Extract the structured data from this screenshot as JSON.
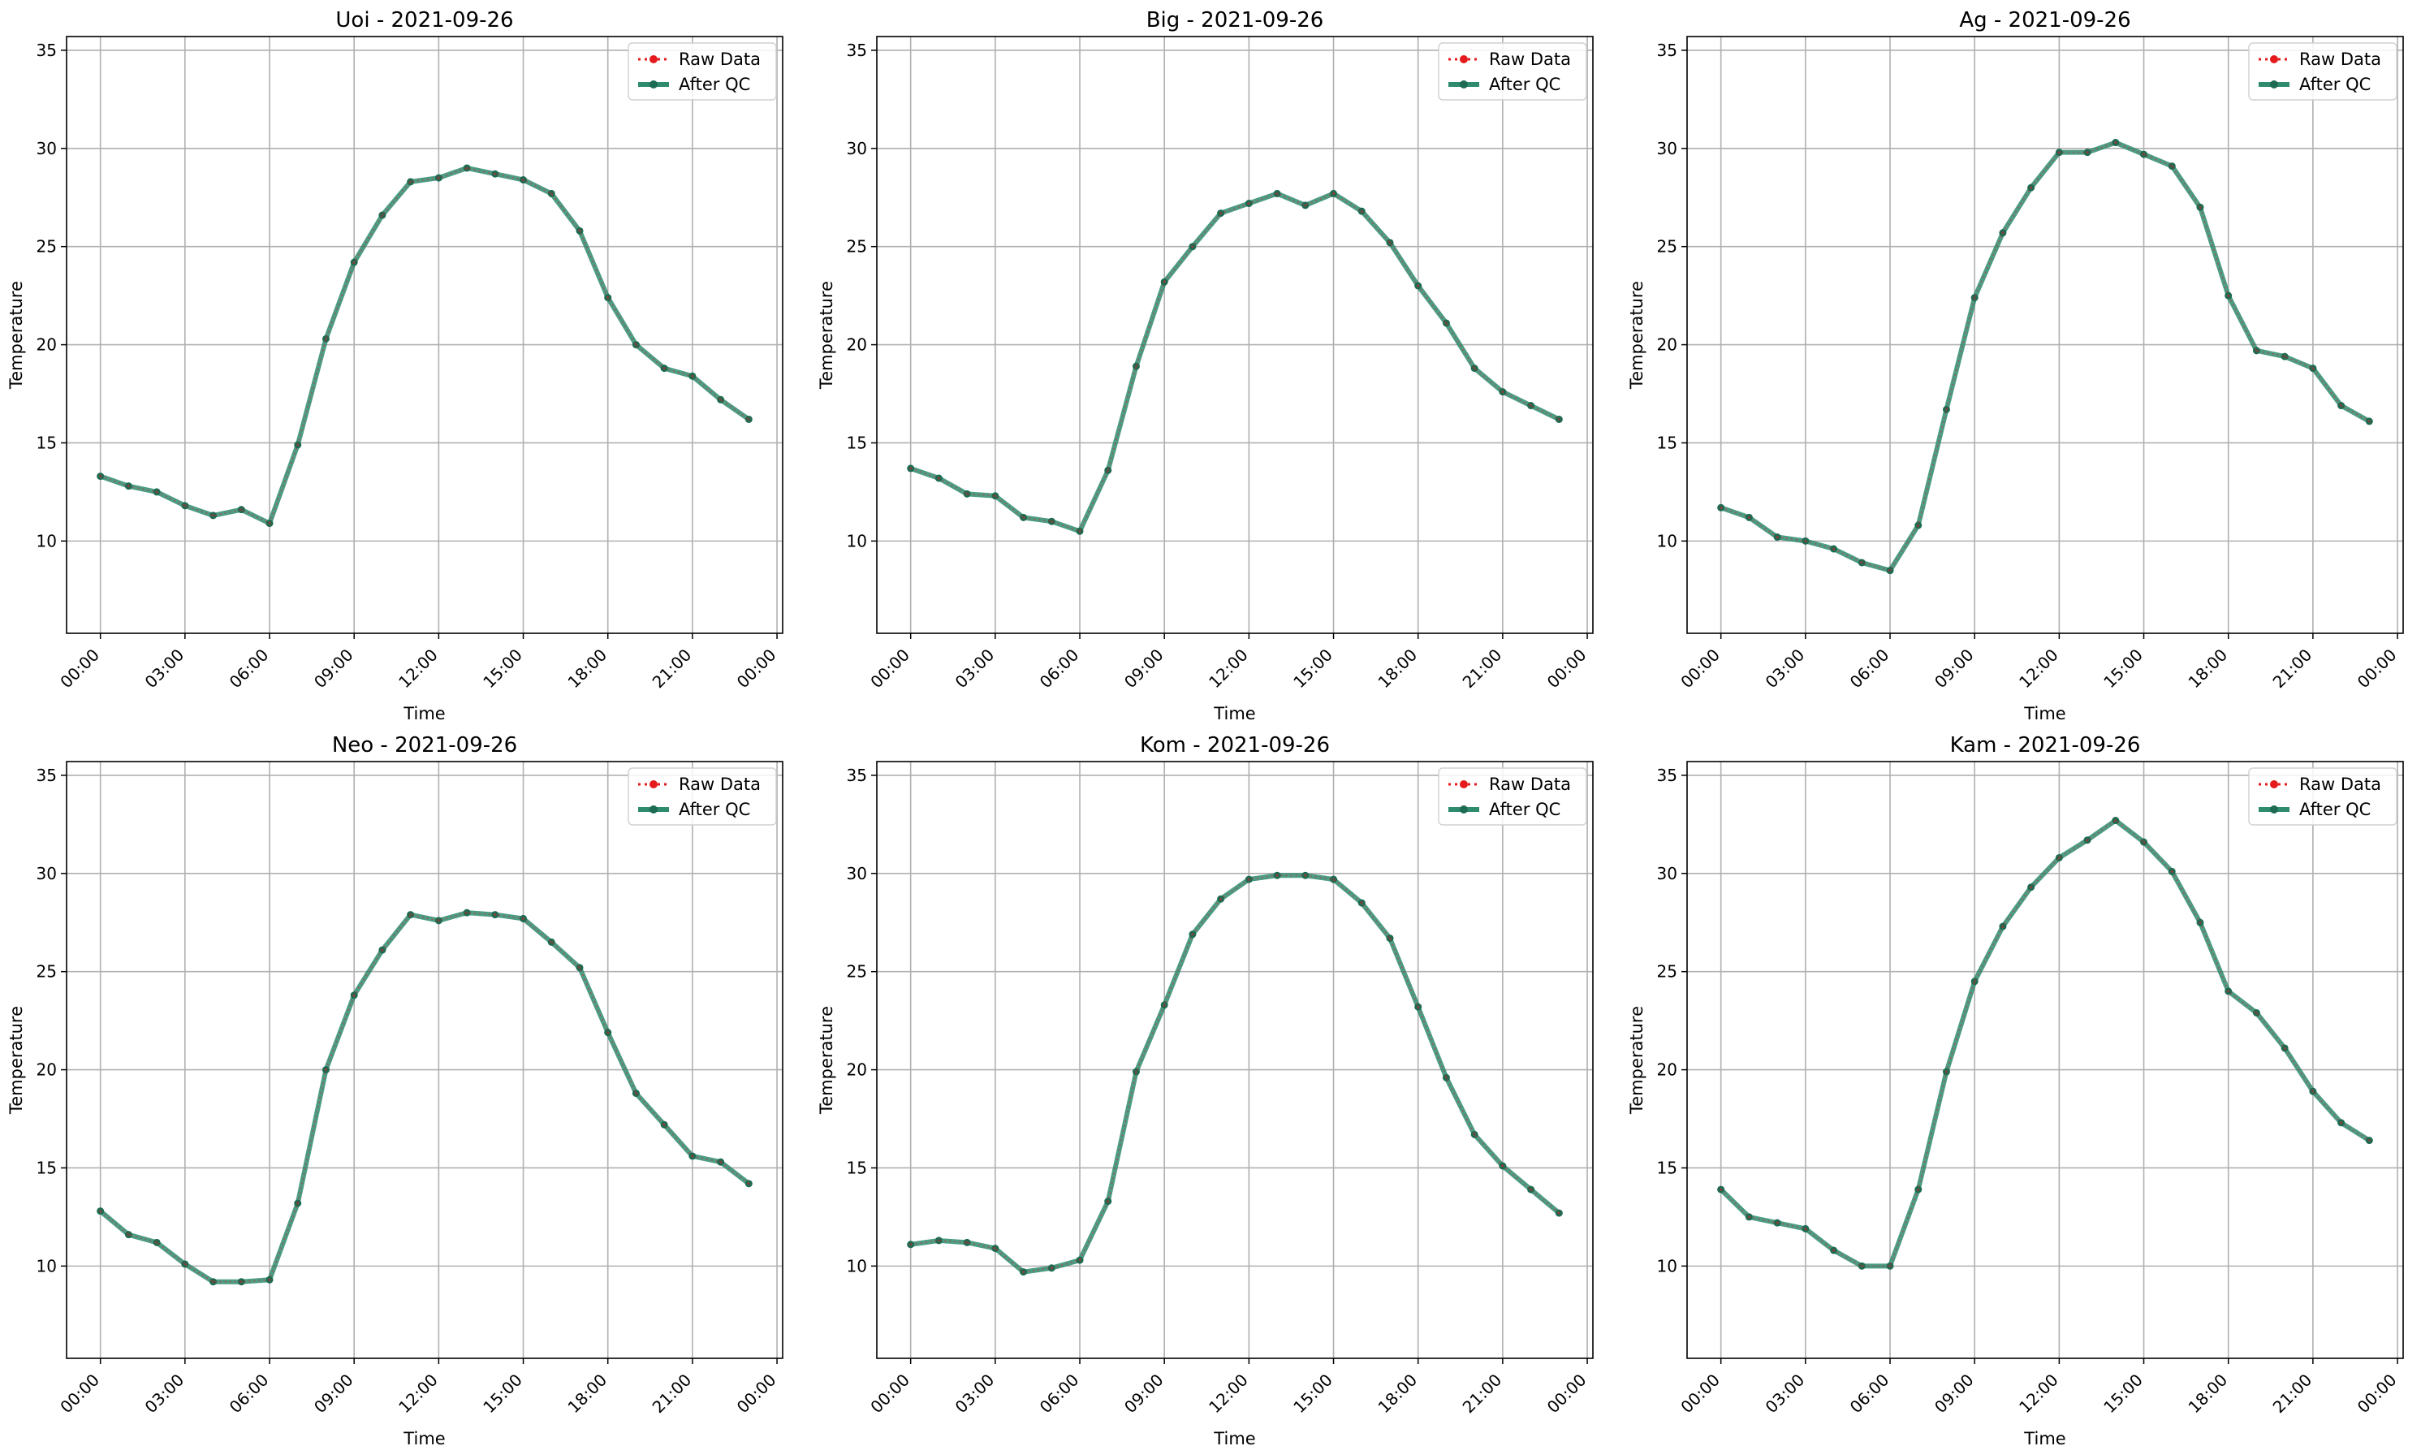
{
  "legend": {
    "raw": "Raw Data",
    "qc": "After QC"
  },
  "colors": {
    "raw": "#e41a1c",
    "qc": "#2e8b6e",
    "qc_marker": "#1e6b53",
    "grid": "#b0b0b0",
    "axis": "#000000"
  },
  "chart_data": [
    {
      "type": "line",
      "title": "Uoi - 2021-09-26",
      "xlabel": "Time",
      "ylabel": "Temperature",
      "x_hours": [
        0,
        1,
        2,
        3,
        4,
        5,
        6,
        7,
        8,
        9,
        10,
        11,
        12,
        13,
        14,
        15,
        16,
        17,
        18,
        19,
        20,
        21,
        22,
        23
      ],
      "xticks": [
        "00:00",
        "03:00",
        "06:00",
        "09:00",
        "12:00",
        "15:00",
        "18:00",
        "21:00",
        "00:00"
      ],
      "yticks": [
        10,
        15,
        20,
        25,
        30,
        35
      ],
      "ylim": [
        5.3,
        35.7
      ],
      "xlim_hours": [
        -1.2,
        24.2
      ],
      "grid": true,
      "legend_position": "top-right",
      "series": [
        {
          "name": "Raw Data",
          "values": [
            13.3,
            12.8,
            12.5,
            11.8,
            11.3,
            11.6,
            10.9,
            14.9,
            20.3,
            24.2,
            26.6,
            28.3,
            28.5,
            29.0,
            28.7,
            28.4,
            27.7,
            25.8,
            22.4,
            20.0,
            18.8,
            18.4,
            17.2,
            16.2
          ]
        },
        {
          "name": "After QC",
          "values": [
            13.3,
            12.8,
            12.5,
            11.8,
            11.3,
            11.6,
            10.9,
            14.9,
            20.3,
            24.2,
            26.6,
            28.3,
            28.5,
            29.0,
            28.7,
            28.4,
            27.7,
            25.8,
            22.4,
            20.0,
            18.8,
            18.4,
            17.2,
            16.2
          ]
        }
      ]
    },
    {
      "type": "line",
      "title": "Big - 2021-09-26",
      "xlabel": "Time",
      "ylabel": "Temperature",
      "x_hours": [
        0,
        1,
        2,
        3,
        4,
        5,
        6,
        7,
        8,
        9,
        10,
        11,
        12,
        13,
        14,
        15,
        16,
        17,
        18,
        19,
        20,
        21,
        22,
        23
      ],
      "xticks": [
        "00:00",
        "03:00",
        "06:00",
        "09:00",
        "12:00",
        "15:00",
        "18:00",
        "21:00",
        "00:00"
      ],
      "yticks": [
        10,
        15,
        20,
        25,
        30,
        35
      ],
      "ylim": [
        5.3,
        35.7
      ],
      "xlim_hours": [
        -1.2,
        24.2
      ],
      "grid": true,
      "legend_position": "top-right",
      "series": [
        {
          "name": "Raw Data",
          "values": [
            13.7,
            13.2,
            12.4,
            12.3,
            11.2,
            11.0,
            10.5,
            13.6,
            18.9,
            23.2,
            25.0,
            26.7,
            27.2,
            27.7,
            27.1,
            27.7,
            26.8,
            25.2,
            23.0,
            21.1,
            18.8,
            17.6,
            16.9,
            16.2
          ]
        },
        {
          "name": "After QC",
          "values": [
            13.7,
            13.2,
            12.4,
            12.3,
            11.2,
            11.0,
            10.5,
            13.6,
            18.9,
            23.2,
            25.0,
            26.7,
            27.2,
            27.7,
            27.1,
            27.7,
            26.8,
            25.2,
            23.0,
            21.1,
            18.8,
            17.6,
            16.9,
            16.2
          ]
        }
      ]
    },
    {
      "type": "line",
      "title": "Ag - 2021-09-26",
      "xlabel": "Time",
      "ylabel": "Temperature",
      "x_hours": [
        0,
        1,
        2,
        3,
        4,
        5,
        6,
        7,
        8,
        9,
        10,
        11,
        12,
        13,
        14,
        15,
        16,
        17,
        18,
        19,
        20,
        21,
        22,
        23
      ],
      "xticks": [
        "00:00",
        "03:00",
        "06:00",
        "09:00",
        "12:00",
        "15:00",
        "18:00",
        "21:00",
        "00:00"
      ],
      "yticks": [
        10,
        15,
        20,
        25,
        30,
        35
      ],
      "ylim": [
        5.3,
        35.7
      ],
      "xlim_hours": [
        -1.2,
        24.2
      ],
      "grid": true,
      "legend_position": "top-right",
      "series": [
        {
          "name": "Raw Data",
          "values": [
            11.7,
            11.2,
            10.2,
            10.0,
            9.6,
            8.9,
            8.5,
            10.8,
            16.7,
            22.4,
            25.7,
            28.0,
            29.8,
            29.8,
            30.3,
            29.7,
            29.1,
            27.0,
            22.5,
            19.7,
            19.4,
            18.8,
            16.9,
            16.1
          ]
        },
        {
          "name": "After QC",
          "values": [
            11.7,
            11.2,
            10.2,
            10.0,
            9.6,
            8.9,
            8.5,
            10.8,
            16.7,
            22.4,
            25.7,
            28.0,
            29.8,
            29.8,
            30.3,
            29.7,
            29.1,
            27.0,
            22.5,
            19.7,
            19.4,
            18.8,
            16.9,
            16.1
          ]
        }
      ]
    },
    {
      "type": "line",
      "title": "Neo - 2021-09-26",
      "xlabel": "Time",
      "ylabel": "Temperature",
      "x_hours": [
        0,
        1,
        2,
        3,
        4,
        5,
        6,
        7,
        8,
        9,
        10,
        11,
        12,
        13,
        14,
        15,
        16,
        17,
        18,
        19,
        20,
        21,
        22,
        23
      ],
      "xticks": [
        "00:00",
        "03:00",
        "06:00",
        "09:00",
        "12:00",
        "15:00",
        "18:00",
        "21:00",
        "00:00"
      ],
      "yticks": [
        10,
        15,
        20,
        25,
        30,
        35
      ],
      "ylim": [
        5.3,
        35.7
      ],
      "xlim_hours": [
        -1.2,
        24.2
      ],
      "grid": true,
      "legend_position": "top-right",
      "series": [
        {
          "name": "Raw Data",
          "values": [
            12.8,
            11.6,
            11.2,
            10.1,
            9.2,
            9.2,
            9.3,
            13.2,
            20.0,
            23.8,
            26.1,
            27.9,
            27.6,
            28.0,
            27.9,
            27.7,
            26.5,
            25.2,
            21.9,
            18.8,
            17.2,
            15.6,
            15.3,
            14.2
          ]
        },
        {
          "name": "After QC",
          "values": [
            12.8,
            11.6,
            11.2,
            10.1,
            9.2,
            9.2,
            9.3,
            13.2,
            20.0,
            23.8,
            26.1,
            27.9,
            27.6,
            28.0,
            27.9,
            27.7,
            26.5,
            25.2,
            21.9,
            18.8,
            17.2,
            15.6,
            15.3,
            14.2
          ]
        }
      ]
    },
    {
      "type": "line",
      "title": "Kom - 2021-09-26",
      "xlabel": "Time",
      "ylabel": "Temperature",
      "x_hours": [
        0,
        1,
        2,
        3,
        4,
        5,
        6,
        7,
        8,
        9,
        10,
        11,
        12,
        13,
        14,
        15,
        16,
        17,
        18,
        19,
        20,
        21,
        22,
        23
      ],
      "xticks": [
        "00:00",
        "03:00",
        "06:00",
        "09:00",
        "12:00",
        "15:00",
        "18:00",
        "21:00",
        "00:00"
      ],
      "yticks": [
        10,
        15,
        20,
        25,
        30,
        35
      ],
      "ylim": [
        5.3,
        35.7
      ],
      "xlim_hours": [
        -1.2,
        24.2
      ],
      "grid": true,
      "legend_position": "top-right",
      "series": [
        {
          "name": "Raw Data",
          "values": [
            11.1,
            11.3,
            11.2,
            10.9,
            9.7,
            9.9,
            10.3,
            13.3,
            19.9,
            23.3,
            26.9,
            28.7,
            29.7,
            29.9,
            29.9,
            29.7,
            28.5,
            26.7,
            23.2,
            19.6,
            16.7,
            15.1,
            13.9,
            12.7
          ]
        },
        {
          "name": "After QC",
          "values": [
            11.1,
            11.3,
            11.2,
            10.9,
            9.7,
            9.9,
            10.3,
            13.3,
            19.9,
            23.3,
            26.9,
            28.7,
            29.7,
            29.9,
            29.9,
            29.7,
            28.5,
            26.7,
            23.2,
            19.6,
            16.7,
            15.1,
            13.9,
            12.7
          ]
        }
      ]
    },
    {
      "type": "line",
      "title": "Kam - 2021-09-26",
      "xlabel": "Time",
      "ylabel": "Temperature",
      "x_hours": [
        0,
        1,
        2,
        3,
        4,
        5,
        6,
        7,
        8,
        9,
        10,
        11,
        12,
        13,
        14,
        15,
        16,
        17,
        18,
        19,
        20,
        21,
        22,
        23
      ],
      "xticks": [
        "00:00",
        "03:00",
        "06:00",
        "09:00",
        "12:00",
        "15:00",
        "18:00",
        "21:00",
        "00:00"
      ],
      "yticks": [
        10,
        15,
        20,
        25,
        30,
        35
      ],
      "ylim": [
        5.3,
        35.7
      ],
      "xlim_hours": [
        -1.2,
        24.2
      ],
      "grid": true,
      "legend_position": "top-right",
      "series": [
        {
          "name": "Raw Data",
          "values": [
            13.9,
            12.5,
            12.2,
            11.9,
            10.8,
            10.0,
            10.0,
            13.9,
            19.9,
            24.5,
            27.3,
            29.3,
            30.8,
            31.7,
            32.7,
            31.6,
            30.1,
            27.5,
            24.0,
            22.9,
            21.1,
            18.9,
            17.3,
            16.4
          ]
        },
        {
          "name": "After QC",
          "values": [
            13.9,
            12.5,
            12.2,
            11.9,
            10.8,
            10.0,
            10.0,
            13.9,
            19.9,
            24.5,
            27.3,
            29.3,
            30.8,
            31.7,
            32.7,
            31.6,
            30.1,
            27.5,
            24.0,
            22.9,
            21.1,
            18.9,
            17.3,
            16.4
          ]
        }
      ]
    }
  ]
}
